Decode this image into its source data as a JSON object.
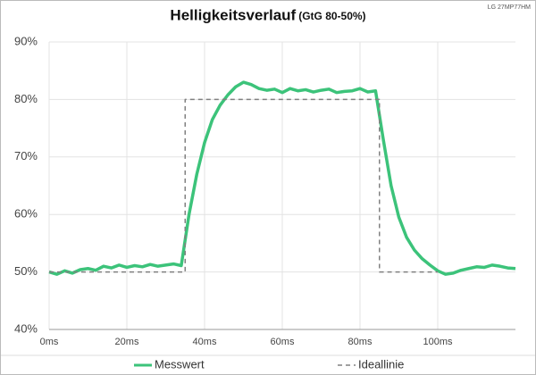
{
  "chart_data": {
    "type": "line",
    "title": "Helligkeitsverlauf",
    "title_note": "(GtG 80-50%)",
    "corner_label": "LG 27MP77HM",
    "xlim": [
      0,
      120
    ],
    "xticks": [
      {
        "value": 0,
        "label": "0ms"
      },
      {
        "value": 20,
        "label": "20ms"
      },
      {
        "value": 40,
        "label": "40ms"
      },
      {
        "value": 60,
        "label": "60ms"
      },
      {
        "value": 80,
        "label": "80ms"
      },
      {
        "value": 100,
        "label": "100ms"
      }
    ],
    "ylim": [
      40,
      90
    ],
    "yticks": [
      {
        "value": 40,
        "label": "40%"
      },
      {
        "value": 50,
        "label": "50%"
      },
      {
        "value": 60,
        "label": "60%"
      },
      {
        "value": 70,
        "label": "70%"
      },
      {
        "value": 80,
        "label": "80%"
      },
      {
        "value": 90,
        "label": "90%"
      }
    ],
    "grid": true,
    "legend": "bottom",
    "series": [
      {
        "name": "Messwert",
        "color": "#3cc37a",
        "style": "solid",
        "x": [
          0,
          2,
          4,
          6,
          8,
          10,
          12,
          14,
          16,
          18,
          20,
          22,
          24,
          26,
          28,
          30,
          32,
          34,
          36,
          38,
          40,
          42,
          44,
          46,
          48,
          50,
          52,
          54,
          56,
          58,
          60,
          62,
          64,
          66,
          68,
          70,
          72,
          74,
          76,
          78,
          80,
          82,
          84,
          86,
          88,
          90,
          92,
          94,
          96,
          98,
          100,
          102,
          104,
          106,
          108,
          110,
          112,
          114,
          116,
          118,
          120
        ],
        "values": [
          50,
          49.6,
          50.2,
          49.8,
          50.4,
          50.6,
          50.3,
          51,
          50.7,
          51.2,
          50.8,
          51.1,
          50.9,
          51.3,
          51,
          51.2,
          51.4,
          51.1,
          60,
          67,
          72.5,
          76.5,
          79,
          80.8,
          82.2,
          83,
          82.6,
          81.9,
          81.6,
          81.8,
          81.2,
          81.9,
          81.5,
          81.7,
          81.3,
          81.6,
          81.8,
          81.2,
          81.4,
          81.5,
          81.9,
          81.3,
          81.5,
          73,
          65,
          59.5,
          56,
          53.8,
          52.3,
          51.2,
          50.2,
          49.6,
          49.8,
          50.3,
          50.6,
          50.9,
          50.8,
          51.2,
          51,
          50.7,
          50.6
        ]
      },
      {
        "name": "Ideallinie",
        "color": "#808080",
        "style": "dashed",
        "x": [
          0,
          35,
          35,
          85,
          85,
          100
        ],
        "values": [
          50,
          50,
          80,
          80,
          50,
          50
        ]
      }
    ]
  }
}
